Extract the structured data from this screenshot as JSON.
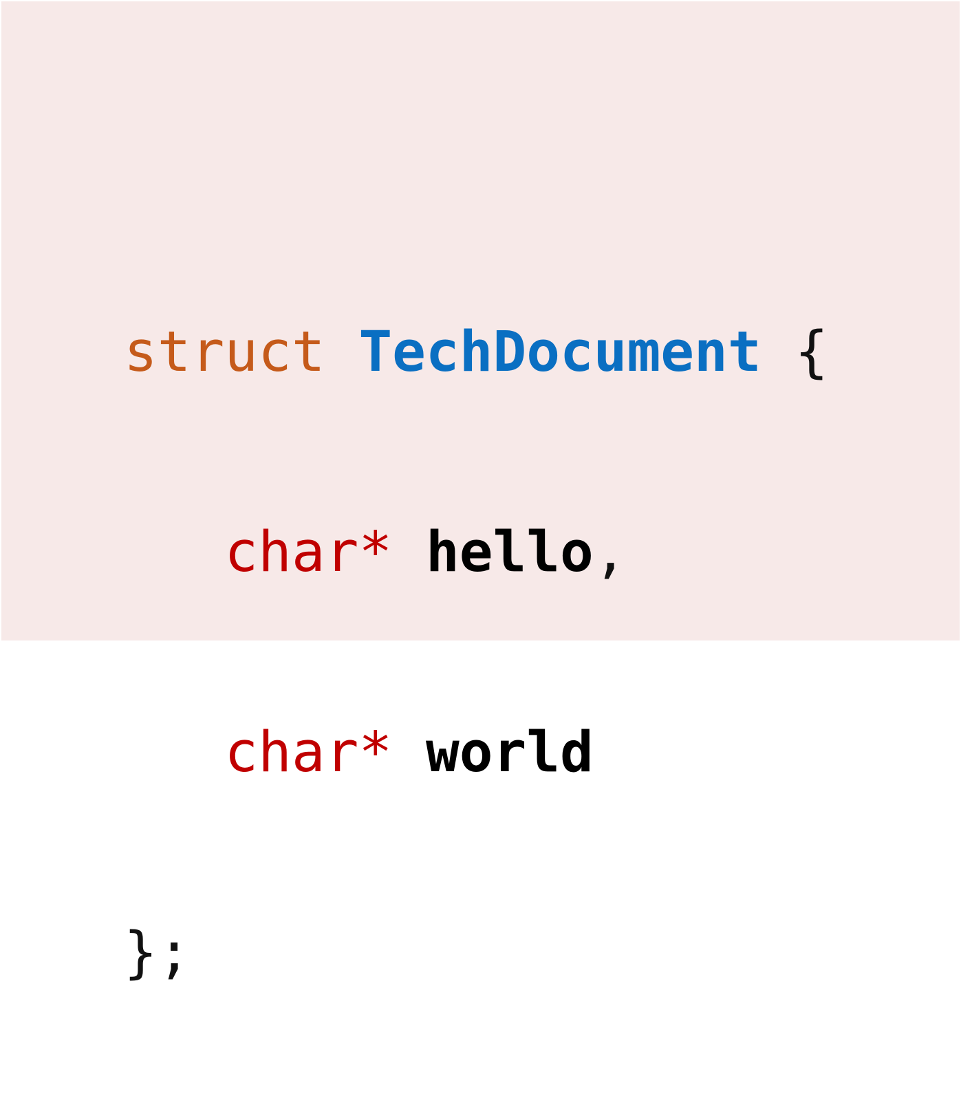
{
  "code": {
    "line1": {
      "keyword": "struct",
      "name": "TechDocument",
      "brace": "{"
    },
    "line2": {
      "type": "char*",
      "field": "hello",
      "punct": ","
    },
    "line3": {
      "type": "char*",
      "field": "world"
    },
    "line4": {
      "close": "};"
    }
  },
  "colors": {
    "background": "#f7e9e8",
    "keyword": "#c55a1a",
    "struct_name": "#0a6fc2",
    "type": "#c00000",
    "identifier": "#000000",
    "punctuation": "#111111"
  }
}
